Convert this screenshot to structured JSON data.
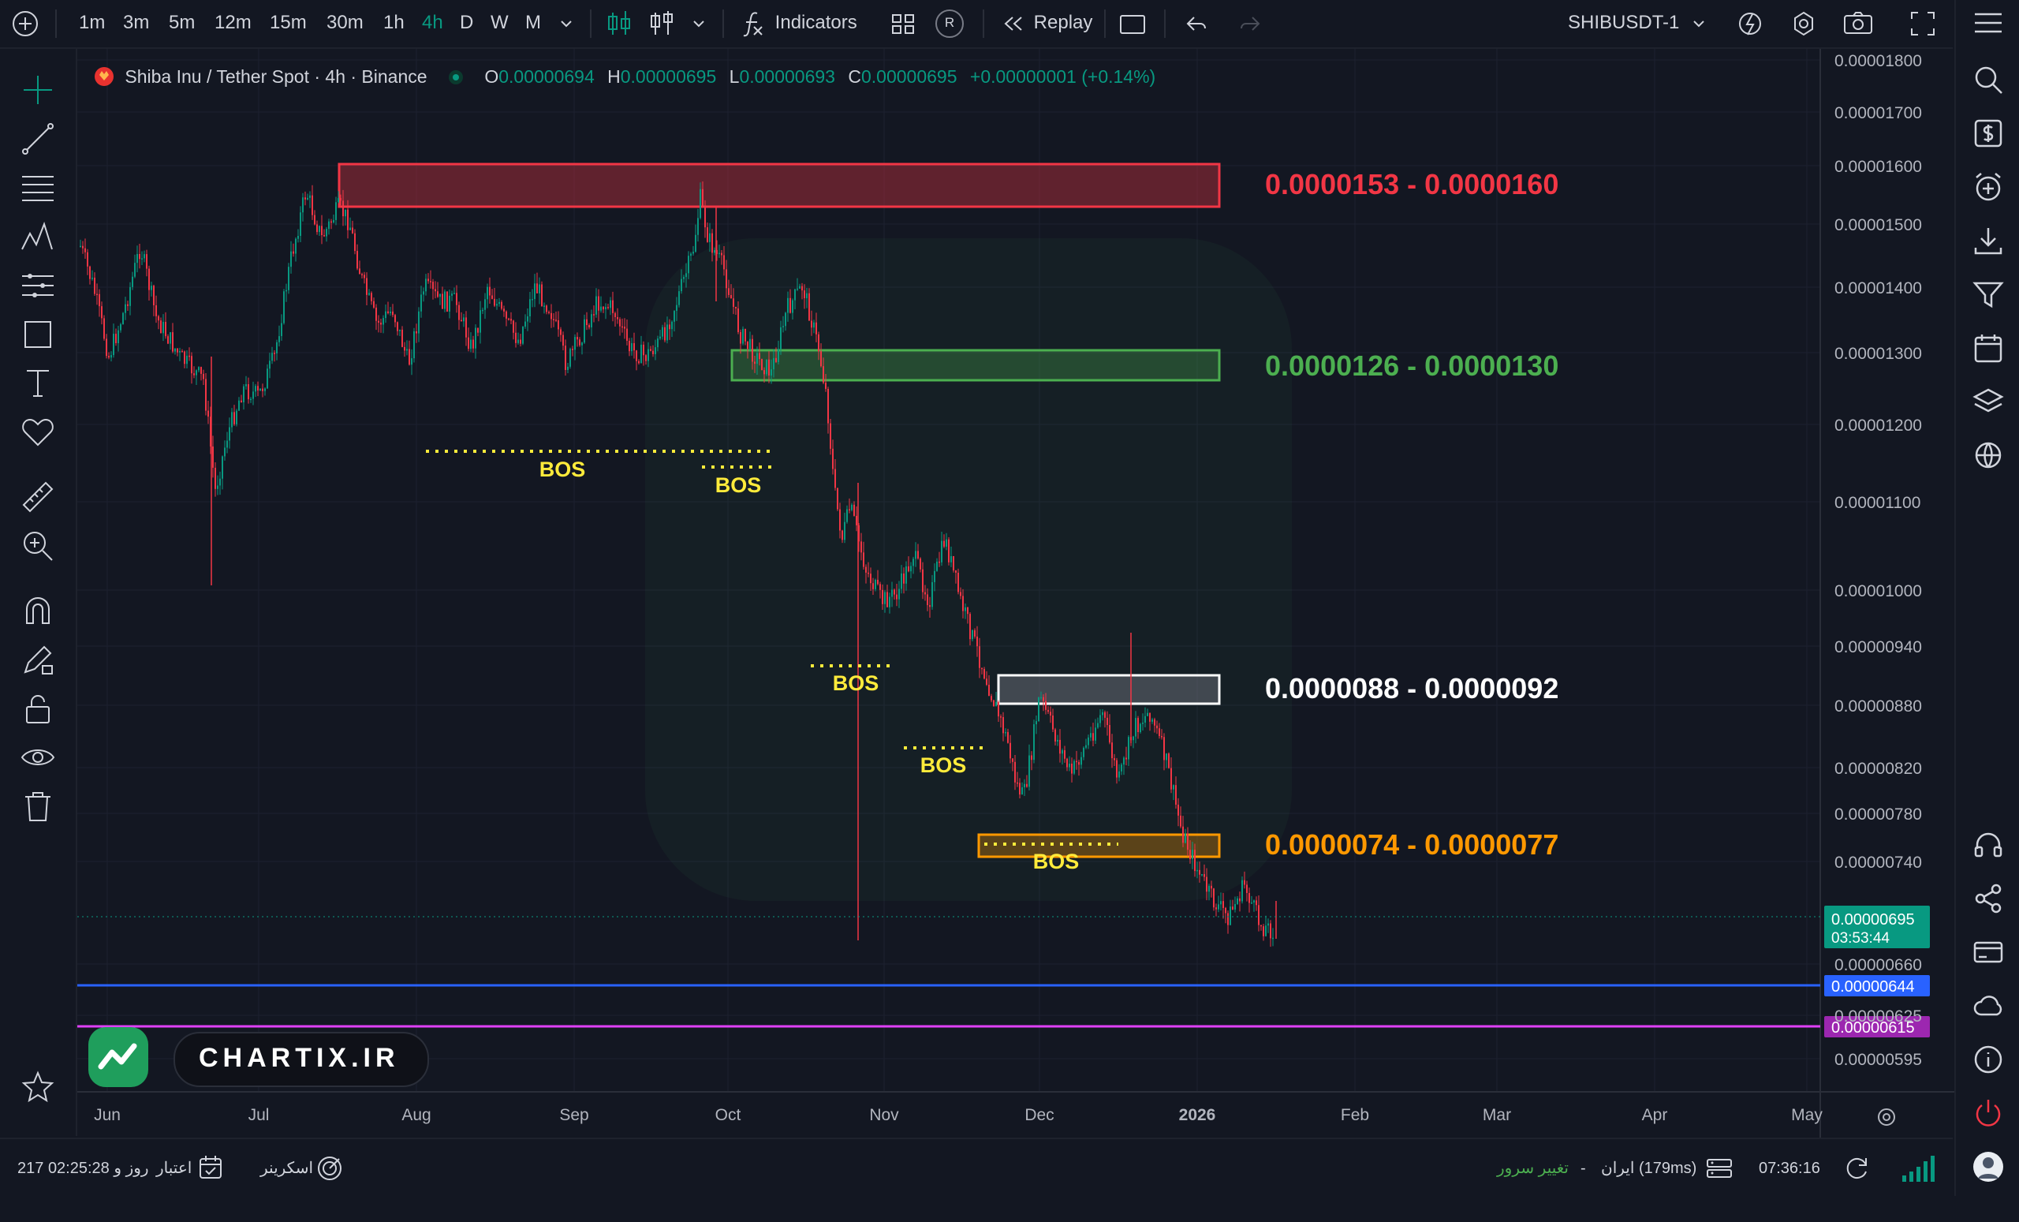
{
  "toolbar": {
    "timeframes": [
      "1m",
      "3m",
      "5m",
      "12m",
      "15m",
      "30m",
      "1h",
      "4h",
      "D",
      "W",
      "M"
    ],
    "active_timeframe": "4h",
    "indicators_label": "Indicators",
    "replay_label": "Replay",
    "badge_r": "R",
    "symbol": "SHIBUSDT-1"
  },
  "legend": {
    "title": "Shiba Inu / Tether Spot · 4h · Binance",
    "o_label": "O",
    "o": "0.00000694",
    "h_label": "H",
    "h": "0.00000695",
    "l_label": "L",
    "l": "0.00000693",
    "c_label": "C",
    "c": "0.00000695",
    "change": "+0.00000001 (+0.14%)"
  },
  "price_axis": {
    "ticks": [
      "0.00001800",
      "0.00001700",
      "0.00001600",
      "0.00001500",
      "0.00001400",
      "0.00001300",
      "0.00001200",
      "0.00001100",
      "0.00001000",
      "0.00000940",
      "0.00000880",
      "0.00000820",
      "0.00000780",
      "0.00000740",
      "0.00000660",
      "0.00000625",
      "0.00000595"
    ],
    "current_price": "0.00000695",
    "countdown": "03:53:44",
    "blue_line_label": "0.00000644",
    "purple_line_label": "0.00000615"
  },
  "time_axis": {
    "labels": [
      "Jun",
      "Jul",
      "Aug",
      "Sep",
      "Oct",
      "Nov",
      "Dec",
      "2026",
      "Feb",
      "Mar",
      "Apr",
      "May"
    ]
  },
  "zones": [
    {
      "label": "0.0000153 - 0.0000160",
      "color": "#f23645"
    },
    {
      "label": "0.0000126 - 0.0000130",
      "color": "#4caf50"
    },
    {
      "label": "0.0000088 - 0.0000092",
      "color": "#ffffff"
    },
    {
      "label": "0.0000074 - 0.0000077",
      "color": "#ff9800"
    }
  ],
  "bos_label": "BOS",
  "watermark": {
    "text": "CHARTIX.IR"
  },
  "bottom": {
    "clock": "07:36:16",
    "server": "ایران (179ms)",
    "dash": "-",
    "change_server": "تغییر سرور",
    "screener": "اسکرینر",
    "credit": "اعتبار",
    "credit_time": "217 روز و 02:25:28"
  },
  "colors": {
    "up": "#089981",
    "down": "#f23645",
    "accent": "#2962ff",
    "bos": "#ffeb3b",
    "blue_line": "#2962ff",
    "purple_line": "#e040fb"
  }
}
